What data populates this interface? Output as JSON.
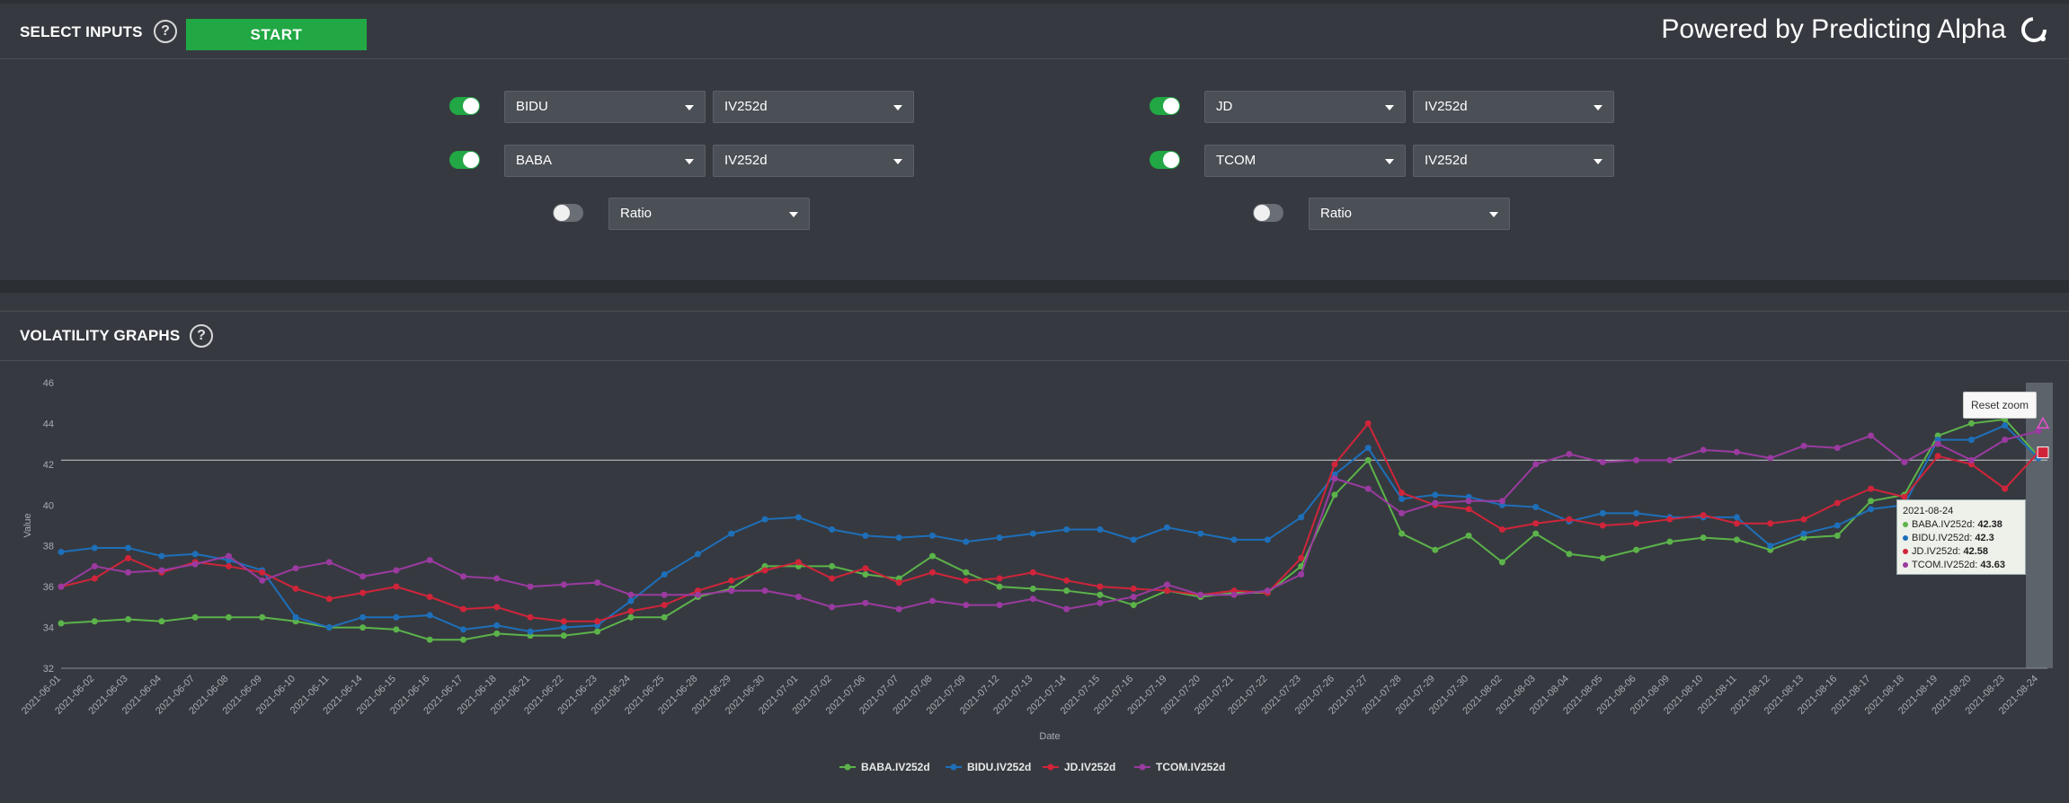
{
  "header": {
    "title": "SELECT INPUTS",
    "start_label": "START",
    "brand": "Powered by Predicting Alpha",
    "help_glyph": "?"
  },
  "inputs": {
    "left": [
      {
        "enabled": true,
        "ticker": "BIDU",
        "metric": "IV252d"
      },
      {
        "enabled": true,
        "ticker": "BABA",
        "metric": "IV252d"
      },
      {
        "enabled": false,
        "ratio": "Ratio"
      }
    ],
    "right": [
      {
        "enabled": true,
        "ticker": "JD",
        "metric": "IV252d"
      },
      {
        "enabled": true,
        "ticker": "TCOM",
        "metric": "IV252d"
      },
      {
        "enabled": false,
        "ratio": "Ratio"
      }
    ]
  },
  "volatility": {
    "title": "VOLATILITY GRAPHS",
    "reset_zoom": "Reset zoom"
  },
  "tooltip": {
    "date": "2021-08-24",
    "rows": [
      {
        "label": "BABA.IV252d:",
        "value": "42.38",
        "color": "#5cb34a"
      },
      {
        "label": "BIDU.IV252d:",
        "value": "42.3",
        "color": "#1e6fba"
      },
      {
        "label": "JD.IV252d:",
        "value": "42.58",
        "color": "#d0243a"
      },
      {
        "label": "TCOM.IV252d:",
        "value": "43.63",
        "color": "#9b3aa0"
      }
    ]
  },
  "colors": {
    "green": "#21a844",
    "baba": "#5cb34a",
    "bidu": "#1e6fba",
    "jd": "#d0243a",
    "tcom": "#9b3aa0"
  },
  "chart_data": {
    "type": "line",
    "xlabel": "Date",
    "ylabel": "Value",
    "ylim": [
      32,
      46
    ],
    "yticks": [
      32,
      34,
      36,
      38,
      40,
      42,
      44,
      46
    ],
    "reference_line": 42.2,
    "legend_position": "bottom-center",
    "grid": false,
    "x": [
      "2021-06-01",
      "2021-06-02",
      "2021-06-03",
      "2021-06-04",
      "2021-06-07",
      "2021-06-08",
      "2021-06-09",
      "2021-06-10",
      "2021-06-11",
      "2021-06-14",
      "2021-06-15",
      "2021-06-16",
      "2021-06-17",
      "2021-06-18",
      "2021-06-21",
      "2021-06-22",
      "2021-06-23",
      "2021-06-24",
      "2021-06-25",
      "2021-06-28",
      "2021-06-29",
      "2021-06-30",
      "2021-07-01",
      "2021-07-02",
      "2021-07-06",
      "2021-07-07",
      "2021-07-08",
      "2021-07-09",
      "2021-07-12",
      "2021-07-13",
      "2021-07-14",
      "2021-07-15",
      "2021-07-16",
      "2021-07-19",
      "2021-07-20",
      "2021-07-21",
      "2021-07-22",
      "2021-07-23",
      "2021-07-26",
      "2021-07-27",
      "2021-07-28",
      "2021-07-29",
      "2021-07-30",
      "2021-08-02",
      "2021-08-03",
      "2021-08-04",
      "2021-08-05",
      "2021-08-06",
      "2021-08-09",
      "2021-08-10",
      "2021-08-11",
      "2021-08-12",
      "2021-08-13",
      "2021-08-16",
      "2021-08-17",
      "2021-08-18",
      "2021-08-19",
      "2021-08-20",
      "2021-08-23",
      "2021-08-24"
    ],
    "series": [
      {
        "name": "BABA.IV252d",
        "color": "#5cb34a",
        "values": [
          34.2,
          34.3,
          34.4,
          34.3,
          34.5,
          34.5,
          34.5,
          34.3,
          34.0,
          34.0,
          33.9,
          33.4,
          33.4,
          33.7,
          33.6,
          33.6,
          33.8,
          34.5,
          34.5,
          35.5,
          35.9,
          37.0,
          37.0,
          37.0,
          36.6,
          36.4,
          37.5,
          36.7,
          36.0,
          35.9,
          35.8,
          35.6,
          35.1,
          35.8,
          35.5,
          35.7,
          35.7,
          37.0,
          40.5,
          42.2,
          38.6,
          37.8,
          38.5,
          37.2,
          38.6,
          37.6,
          37.4,
          37.8,
          38.2,
          38.4,
          38.3,
          37.8,
          38.4,
          38.5,
          40.2,
          40.5,
          43.4,
          44.0,
          44.2,
          42.38
        ]
      },
      {
        "name": "BIDU.IV252d",
        "color": "#1e6fba",
        "values": [
          37.7,
          37.9,
          37.9,
          37.5,
          37.6,
          37.3,
          36.8,
          34.5,
          34.0,
          34.5,
          34.5,
          34.6,
          33.9,
          34.1,
          33.8,
          34.0,
          34.1,
          35.3,
          36.6,
          37.6,
          38.6,
          39.3,
          39.4,
          38.8,
          38.5,
          38.4,
          38.5,
          38.2,
          38.4,
          38.6,
          38.8,
          38.8,
          38.3,
          38.9,
          38.6,
          38.3,
          38.3,
          39.4,
          41.5,
          42.8,
          40.3,
          40.5,
          40.4,
          40.0,
          39.9,
          39.2,
          39.6,
          39.6,
          39.4,
          39.4,
          39.4,
          38.0,
          38.6,
          39.0,
          39.8,
          40.0,
          43.2,
          43.2,
          43.9,
          42.3
        ]
      },
      {
        "name": "JD.IV252d",
        "color": "#d0243a",
        "values": [
          36.0,
          36.4,
          37.4,
          36.7,
          37.2,
          37.0,
          36.7,
          35.9,
          35.4,
          35.7,
          36.0,
          35.5,
          34.9,
          35.0,
          34.5,
          34.3,
          34.3,
          34.8,
          35.1,
          35.8,
          36.3,
          36.8,
          37.2,
          36.4,
          36.9,
          36.2,
          36.7,
          36.3,
          36.4,
          36.7,
          36.3,
          36.0,
          35.9,
          35.8,
          35.6,
          35.8,
          35.7,
          37.4,
          42.0,
          44.0,
          40.6,
          40.0,
          39.8,
          38.8,
          39.1,
          39.3,
          39.0,
          39.1,
          39.3,
          39.5,
          39.1,
          39.1,
          39.3,
          40.1,
          40.8,
          40.4,
          42.4,
          42.0,
          40.8,
          42.58
        ]
      },
      {
        "name": "TCOM.IV252d",
        "color": "#9b3aa0",
        "values": [
          36.0,
          37.0,
          36.7,
          36.8,
          37.1,
          37.5,
          36.3,
          36.9,
          37.2,
          36.5,
          36.8,
          37.3,
          36.5,
          36.4,
          36.0,
          36.1,
          36.2,
          35.6,
          35.6,
          35.6,
          35.8,
          35.8,
          35.5,
          35.0,
          35.2,
          34.9,
          35.3,
          35.1,
          35.1,
          35.4,
          34.9,
          35.2,
          35.5,
          36.1,
          35.6,
          35.6,
          35.8,
          36.6,
          41.3,
          40.8,
          39.6,
          40.1,
          40.2,
          40.2,
          42.0,
          42.5,
          42.1,
          42.2,
          42.2,
          42.7,
          42.6,
          42.3,
          42.9,
          42.8,
          43.4,
          42.1,
          43.0,
          42.2,
          43.2,
          43.63
        ]
      }
    ]
  }
}
